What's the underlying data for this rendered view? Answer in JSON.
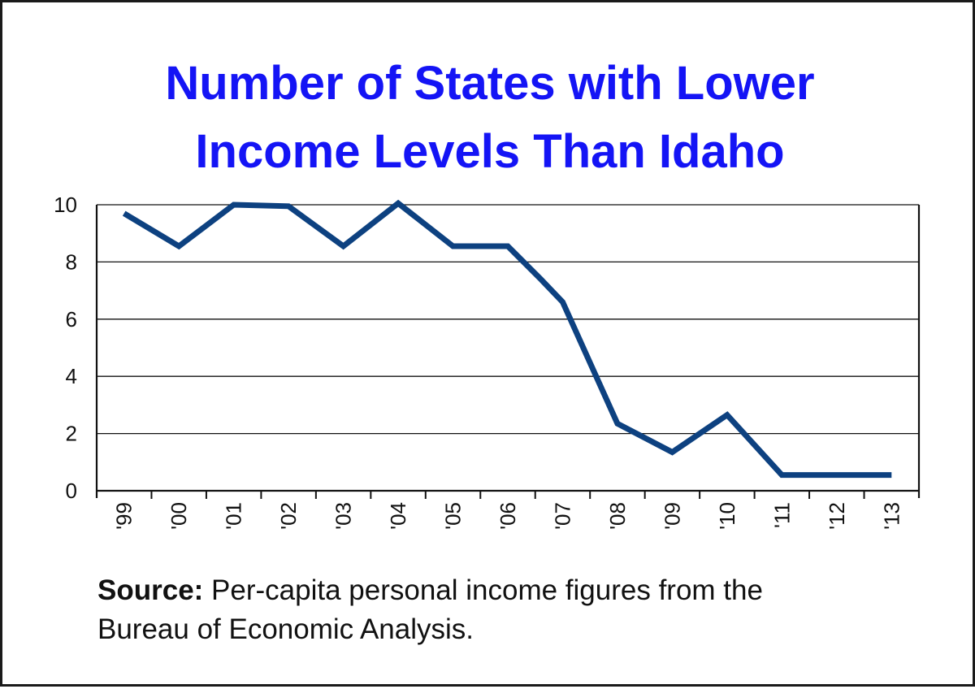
{
  "chart_data": {
    "type": "line",
    "title": "Number of States with Lower Income Levels Than Idaho",
    "title_lines": [
      "Number of States with Lower",
      "Income Levels Than Idaho"
    ],
    "xlabel": "",
    "ylabel": "",
    "categories": [
      "'99",
      "'00",
      "'01",
      "'02",
      "'03",
      "'04",
      "'05",
      "'06",
      "'07",
      "'08",
      "'09",
      "'10",
      "'11",
      "'12",
      "'13"
    ],
    "series": [
      {
        "name": "States with lower income than Idaho",
        "color": "#0d4180",
        "values": [
          9.7,
          8.55,
          10.0,
          9.95,
          8.55,
          10.05,
          8.55,
          8.55,
          6.6,
          2.35,
          1.35,
          2.65,
          0.55,
          0.55,
          0.55
        ]
      }
    ],
    "ylim": [
      0,
      10
    ],
    "yticks": [
      0,
      2,
      4,
      6,
      8,
      10
    ],
    "grid": true,
    "legend": "none",
    "x_label_rotation": -90,
    "source_label": "Source:",
    "source_text": "Per-capita personal income figures from the Bureau of Economic Analysis."
  },
  "colors": {
    "title": "#1414f5",
    "line": "#0d4180",
    "axis": "#111111",
    "border": "#1a1a1a"
  },
  "source": {
    "label": "Source:",
    "line1": " Per-capita personal income figures from the",
    "line2": "Bureau of Economic Analysis."
  }
}
